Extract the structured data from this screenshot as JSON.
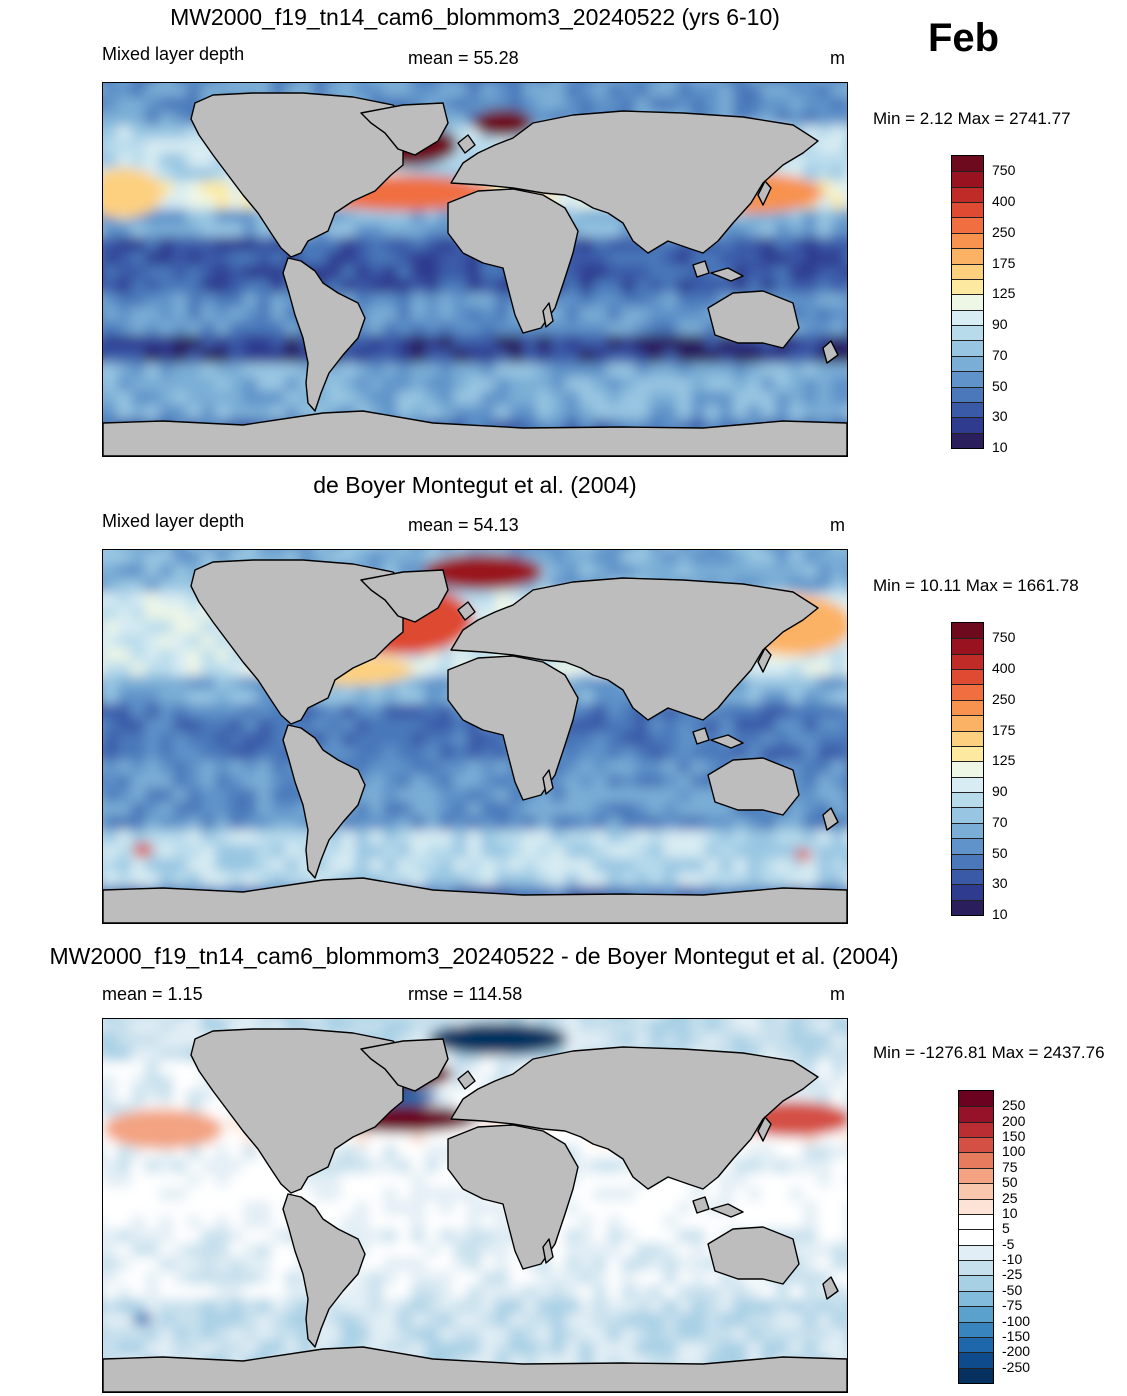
{
  "month": "Feb",
  "colors": {
    "land": "#bdbdbd",
    "coast": "#000000",
    "mld_scale": [
      "#2a1e5c",
      "#2e3b8f",
      "#3a5aa8",
      "#4a78ba",
      "#5f93c9",
      "#7aaed6",
      "#98c6e2",
      "#b8dbec",
      "#d8ecf3",
      "#eef6e6",
      "#fdeaa0",
      "#fdd080",
      "#fcb265",
      "#f8924f",
      "#f06e3f",
      "#de4a32",
      "#c02a27",
      "#98131f",
      "#6d0a1e"
    ],
    "diff_scale": [
      "#06305f",
      "#0d4b8c",
      "#1f67ab",
      "#3784bf",
      "#5aa1ce",
      "#82bbdb",
      "#a8d0e5",
      "#c7e0ed",
      "#e2eef5",
      "#ffffff",
      "#ffffff",
      "#fce3d6",
      "#f8c7ae",
      "#f3a381",
      "#e77b5e",
      "#d44f44",
      "#ba2d32",
      "#951228",
      "#6b0320"
    ]
  },
  "chart_data": [
    {
      "type": "heatmap",
      "title": "MW2000_f19_tn14_cam6_blommom3_20240522 (yrs 6-10)",
      "left_label": "Mixed layer depth",
      "center_label": "mean =  55.28",
      "units": "m",
      "minmax": "Min =   2.12 Max = 2741.77",
      "colorbar_labels": [
        "750",
        "400",
        "250",
        "175",
        "125",
        "90",
        "70",
        "50",
        "30",
        "10"
      ],
      "stats": {
        "mean": 55.28,
        "min": 2.12,
        "max": 2741.77
      }
    },
    {
      "type": "heatmap",
      "title": "de Boyer Montegut et al. (2004)",
      "left_label": "Mixed layer depth",
      "center_label": "mean =  54.13",
      "units": "m",
      "minmax": "Min =  10.11 Max = 1661.78",
      "colorbar_labels": [
        "750",
        "400",
        "250",
        "175",
        "125",
        "90",
        "70",
        "50",
        "30",
        "10"
      ],
      "stats": {
        "mean": 54.13,
        "min": 10.11,
        "max": 1661.78
      }
    },
    {
      "type": "heatmap",
      "title": "MW2000_f19_tn14_cam6_blommom3_20240522 - de Boyer Montegut et al. (2004)",
      "left_label": "mean =   1.15",
      "center_label": "rmse = 114.58",
      "units": "m",
      "minmax": "Min = -1276.81 Max = 2437.76",
      "colorbar_labels": [
        "250",
        "200",
        "150",
        "100",
        "75",
        "50",
        "25",
        "10",
        "5",
        "-5",
        "-10",
        "-25",
        "-50",
        "-75",
        "-100",
        "-150",
        "-200",
        "-250"
      ],
      "stats": {
        "mean": 1.15,
        "rmse": 114.58,
        "min": -1276.81,
        "max": 2437.76
      }
    }
  ]
}
